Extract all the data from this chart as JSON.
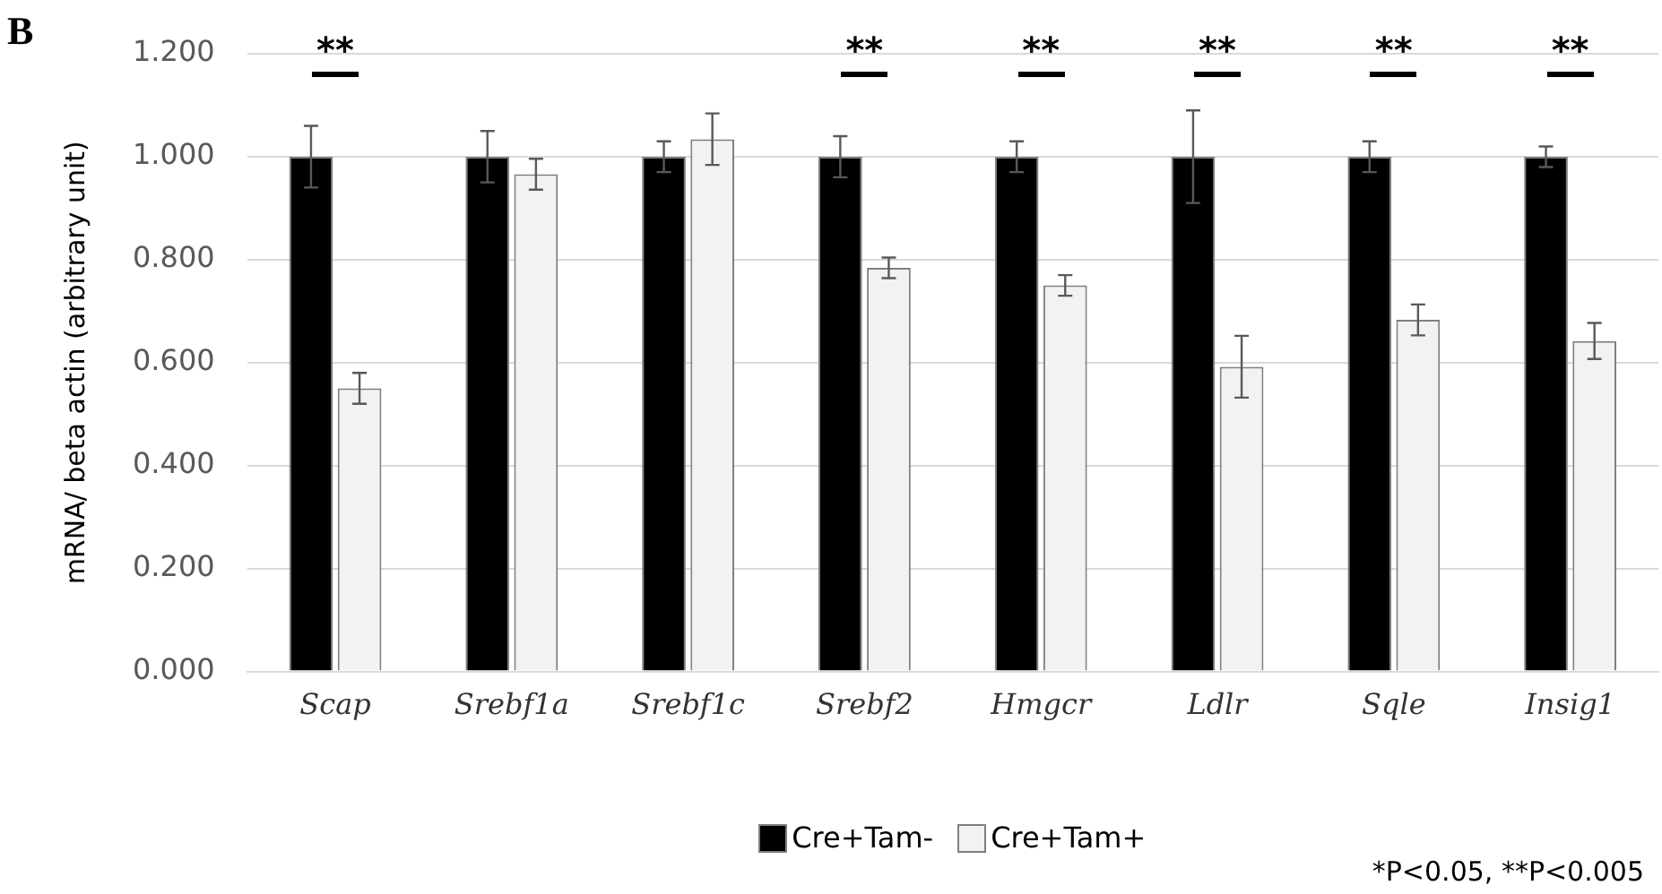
{
  "chart_data": {
    "type": "bar",
    "ylabel": "mRNA/ beta actin (arbitrary unit)",
    "categories": [
      "Scap",
      "Srebf1a",
      "Srebf1c",
      "Srebf2",
      "Hmgcr",
      "Ldlr",
      "Sqle",
      "Insig1"
    ],
    "series": [
      {
        "name": "Cre+Tam-",
        "color": "#000000",
        "values": [
          1,
          1,
          1,
          1,
          1,
          1,
          1,
          1
        ],
        "errors": [
          0.06,
          0.05,
          0.03,
          0.04,
          0.03,
          0.09,
          0.03,
          0.02
        ],
        "value_labels": [
          "**",
          null,
          null,
          "**",
          "**",
          "**",
          "**",
          "**"
        ]
      },
      {
        "name": "Cre+Tam+",
        "color": "#f2f2f2",
        "values": [
          0.55,
          0.966,
          1.034,
          0.784,
          0.75,
          0.592,
          0.683,
          0.642
        ],
        "errors": [
          0.03,
          0.03,
          0.05,
          0.02,
          0.02,
          0.06,
          0.03,
          0.035
        ]
      }
    ],
    "ylim": [
      0,
      1.2
    ],
    "yticks": [
      {
        "value": 0,
        "label": "0.000"
      },
      {
        "value": 0.2,
        "label": "0.200"
      },
      {
        "value": 0.4,
        "label": "0.400"
      },
      {
        "value": 0.6,
        "label": "0.600"
      },
      {
        "value": 0.8,
        "label": "0.800"
      },
      {
        "value": 1,
        "label": "1.000"
      },
      {
        "value": 1.2,
        "label": "1.200"
      }
    ],
    "grid": "y",
    "legend": "bottom",
    "annotations": [
      "B",
      "*P<0.05, **P<0.005"
    ]
  }
}
